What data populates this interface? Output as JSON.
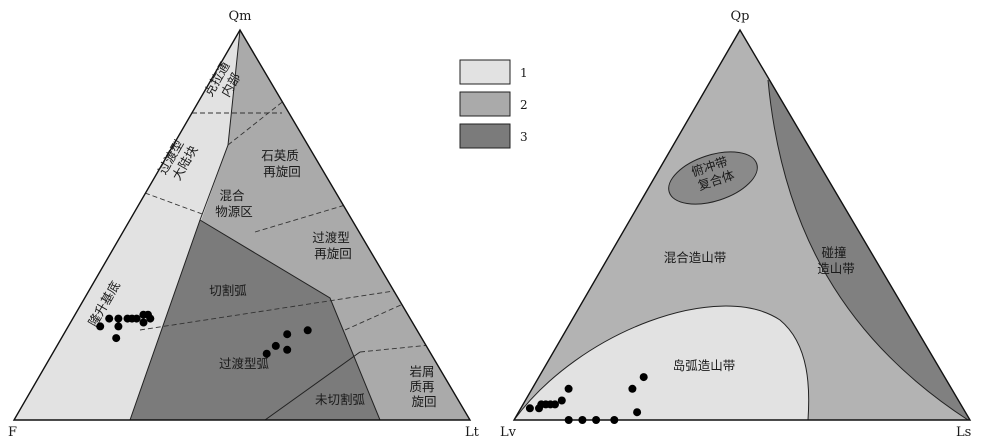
{
  "left_diagram": {
    "vertex_labels": {
      "top": "Qm",
      "left": "F",
      "right": "Lt"
    },
    "region_labels": {
      "craton_interior": [
        "克拉通",
        "内部"
      ],
      "transitional_continental": [
        "过渡型",
        "大陆块"
      ],
      "basement_uplift": "隆升基底",
      "quartzose_recycled": [
        "石英质",
        "再旋回"
      ],
      "mixed": [
        "混合",
        "物源区"
      ],
      "transitional_recycled": [
        "过渡型",
        "再旋回"
      ],
      "dissected_arc": "切割弧",
      "transitional_arc": "过渡型弧",
      "undissected_arc": "未切割弧",
      "lithic_recycled": [
        "岩屑",
        "质再",
        "旋回"
      ]
    },
    "sample_points": [
      {
        "f": 0.58,
        "lt": 0.15
      },
      {
        "f": 0.57,
        "lt": 0.16
      },
      {
        "f": 0.57,
        "lt": 0.17
      },
      {
        "f": 0.59,
        "lt": 0.16
      },
      {
        "f": 0.6,
        "lt": 0.14
      },
      {
        "f": 0.61,
        "lt": 0.13
      },
      {
        "f": 0.62,
        "lt": 0.12
      },
      {
        "f": 0.64,
        "lt": 0.1
      },
      {
        "f": 0.65,
        "lt": 0.11
      },
      {
        "f": 0.66,
        "lt": 0.08
      },
      {
        "f": 0.67,
        "lt": 0.12
      },
      {
        "f": 0.69,
        "lt": 0.07
      },
      {
        "f": 0.36,
        "lt": 0.47
      },
      {
        "f": 0.33,
        "lt": 0.48
      },
      {
        "f": 0.29,
        "lt": 0.49
      },
      {
        "f": 0.31,
        "lt": 0.51
      },
      {
        "f": 0.24,
        "lt": 0.53
      }
    ]
  },
  "right_diagram": {
    "vertex_labels": {
      "top": "Qp",
      "left": "Lv",
      "right": "Ls"
    },
    "region_labels": {
      "subduction_complex": [
        "俯冲带",
        "复合体"
      ],
      "mixed_orogen": "混合造山带",
      "collision_orogen": [
        "碰撞",
        "造山带"
      ],
      "arc_orogen": "岛弧造山带"
    },
    "sample_points": [
      {
        "lv": 0.95,
        "ls": 0.02
      },
      {
        "lv": 0.93,
        "ls": 0.04
      },
      {
        "lv": 0.92,
        "ls": 0.04
      },
      {
        "lv": 0.91,
        "ls": 0.05
      },
      {
        "lv": 0.9,
        "ls": 0.06
      },
      {
        "lv": 0.89,
        "ls": 0.07
      },
      {
        "lv": 0.87,
        "ls": 0.08
      },
      {
        "lv": 0.84,
        "ls": 0.08
      },
      {
        "lv": 0.88,
        "ls": 0.12
      },
      {
        "lv": 0.85,
        "ls": 0.15
      },
      {
        "lv": 0.82,
        "ls": 0.18
      },
      {
        "lv": 0.78,
        "ls": 0.22
      },
      {
        "lv": 0.7,
        "ls": 0.22
      },
      {
        "lv": 0.72,
        "ls": 0.26
      },
      {
        "lv": 0.66,
        "ls": 0.23
      }
    ]
  },
  "legend": [
    {
      "label": "1",
      "color": "#e2e2e2"
    },
    {
      "label": "2",
      "color": "#aaaaaa"
    },
    {
      "label": "3",
      "color": "#7b7b7b"
    }
  ]
}
